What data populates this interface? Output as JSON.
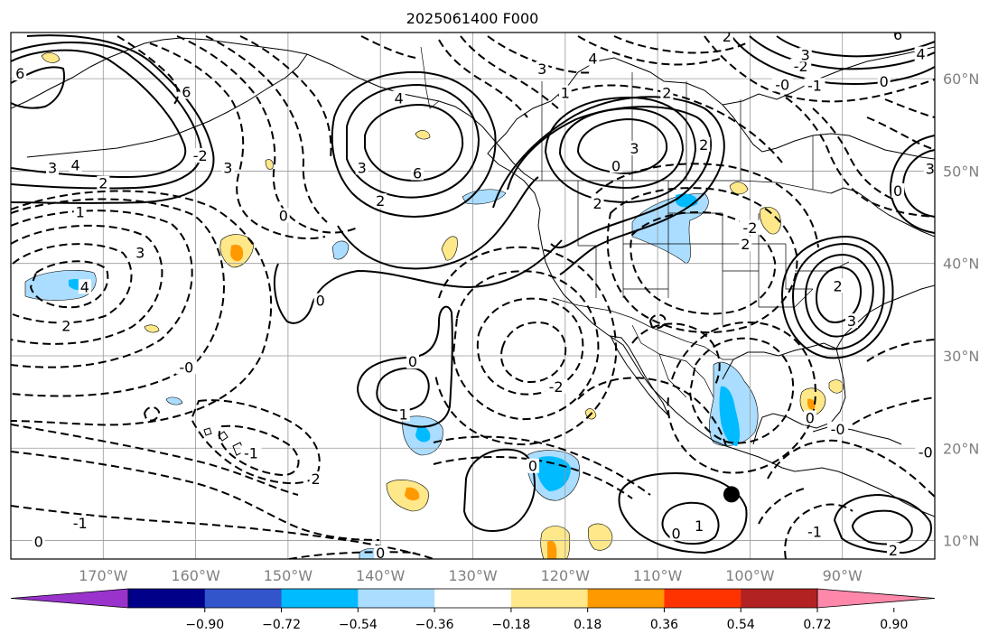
{
  "figure": {
    "title": "2025061400 F000"
  },
  "map": {
    "lon_range": [
      -180,
      -80
    ],
    "lat_range": [
      8,
      65
    ],
    "lat_ticks": [
      {
        "value": 10,
        "label": "10°N"
      },
      {
        "value": 20,
        "label": "20°N"
      },
      {
        "value": 30,
        "label": "30°N"
      },
      {
        "value": 40,
        "label": "40°N"
      },
      {
        "value": 50,
        "label": "50°N"
      },
      {
        "value": 60,
        "label": "60°N"
      }
    ],
    "lon_ticks": [
      {
        "value": -170,
        "label": "170°W"
      },
      {
        "value": -160,
        "label": "160°W"
      },
      {
        "value": -150,
        "label": "150°W"
      },
      {
        "value": -140,
        "label": "140°W"
      },
      {
        "value": -130,
        "label": "130°W"
      },
      {
        "value": -120,
        "label": "120°W"
      },
      {
        "value": -110,
        "label": "110°W"
      },
      {
        "value": -100,
        "label": "100°W"
      },
      {
        "value": -90,
        "label": "90°W"
      }
    ],
    "grid": true,
    "marker": {
      "lon": -102,
      "lat": 15,
      "color": "#000000"
    }
  },
  "colorbar": {
    "extend": "both",
    "colors": [
      "#9933cc",
      "#000088",
      "#3355cc",
      "#00bbff",
      "#aaddff",
      "#ffffff",
      "#ffe88a",
      "#ff9900",
      "#ff3300",
      "#b22222",
      "#ff88aa"
    ],
    "tick_labels": [
      "−0.90",
      "−0.72",
      "−0.54",
      "−0.36",
      "−0.18",
      "0.18",
      "0.36",
      "0.54",
      "0.72",
      "0.90"
    ]
  },
  "contour_labels": [
    {
      "text": "6",
      "lon": -179,
      "lat": 60.5
    },
    {
      "text": "3",
      "lon": -175.5,
      "lat": 50.3
    },
    {
      "text": "4",
      "lon": -173,
      "lat": 50.6
    },
    {
      "text": "2",
      "lon": -170,
      "lat": 48.6
    },
    {
      "text": "1",
      "lon": -172.5,
      "lat": 45.5
    },
    {
      "text": "3",
      "lon": -166,
      "lat": 41.1
    },
    {
      "text": "4",
      "lon": -172,
      "lat": 37.4
    },
    {
      "text": "2",
      "lon": -174,
      "lat": 33.2
    },
    {
      "text": "-0",
      "lon": -161,
      "lat": 28.7
    },
    {
      "text": "-1",
      "lon": -154,
      "lat": 19.4
    },
    {
      "text": "2",
      "lon": -147,
      "lat": 16.6
    },
    {
      "text": "-1",
      "lon": -172.5,
      "lat": 11.8
    },
    {
      "text": "0",
      "lon": -177,
      "lat": 9.8
    },
    {
      "text": "6",
      "lon": -161,
      "lat": 58.5
    },
    {
      "text": "-2",
      "lon": -159.5,
      "lat": 51.6
    },
    {
      "text": "3",
      "lon": -156.5,
      "lat": 50.3
    },
    {
      "text": "0",
      "lon": -150.5,
      "lat": 45.1
    },
    {
      "text": "4",
      "lon": -138,
      "lat": 57.8
    },
    {
      "text": "6",
      "lon": -136,
      "lat": 49.7
    },
    {
      "text": "2",
      "lon": -140,
      "lat": 46.7
    },
    {
      "text": "3",
      "lon": -142,
      "lat": 50.3
    },
    {
      "text": "0",
      "lon": -146.5,
      "lat": 35.9
    },
    {
      "text": "0",
      "lon": -136.5,
      "lat": 29.3
    },
    {
      "text": "1",
      "lon": -137.5,
      "lat": 23.6
    },
    {
      "text": "0",
      "lon": -114.5,
      "lat": 50.5
    },
    {
      "text": "3",
      "lon": -122.5,
      "lat": 61.0
    },
    {
      "text": "4",
      "lon": -117,
      "lat": 62.1
    },
    {
      "text": "1",
      "lon": -120,
      "lat": 58.4
    },
    {
      "text": "2",
      "lon": -109,
      "lat": 58.4
    },
    {
      "text": "3",
      "lon": -112.5,
      "lat": 52.4
    },
    {
      "text": "2",
      "lon": -105,
      "lat": 52.8
    },
    {
      "text": "2",
      "lon": -116.5,
      "lat": 46.4
    },
    {
      "text": "-2",
      "lon": -121,
      "lat": 26.6
    },
    {
      "text": "0",
      "lon": -123.5,
      "lat": 18.0
    },
    {
      "text": "1",
      "lon": -105.5,
      "lat": 11.5
    },
    {
      "text": "0",
      "lon": -108,
      "lat": 10.7
    },
    {
      "text": "0",
      "lon": -140,
      "lat": 8.6
    },
    {
      "text": "-2",
      "lon": -100,
      "lat": 43.8
    },
    {
      "text": "2",
      "lon": -100.5,
      "lat": 42.0
    },
    {
      "text": "-0",
      "lon": -96.5,
      "lat": 59.3
    },
    {
      "text": "-2",
      "lon": -94.5,
      "lat": 61.3
    },
    {
      "text": "-1",
      "lon": -93,
      "lat": 59.2
    },
    {
      "text": "0",
      "lon": -85.5,
      "lat": 59.6
    },
    {
      "text": "6",
      "lon": -84,
      "lat": 64.7
    },
    {
      "text": "4",
      "lon": -81.5,
      "lat": 62.6
    },
    {
      "text": "3",
      "lon": -94,
      "lat": 62.5
    },
    {
      "text": "2",
      "lon": -102.5,
      "lat": 64.5
    },
    {
      "text": "3",
      "lon": -80.5,
      "lat": 50.2
    },
    {
      "text": "0",
      "lon": -84,
      "lat": 47.8
    },
    {
      "text": "-0",
      "lon": -81,
      "lat": 19.5
    },
    {
      "text": "2",
      "lon": -90.5,
      "lat": 37.5
    },
    {
      "text": "3",
      "lon": -89,
      "lat": 33.7
    },
    {
      "text": "0",
      "lon": -93.5,
      "lat": 23.2
    },
    {
      "text": "-0",
      "lon": -90.5,
      "lat": 22.0
    },
    {
      "text": "-1",
      "lon": -93,
      "lat": 10.9
    },
    {
      "text": "2",
      "lon": -84.5,
      "lat": 8.9
    }
  ]
}
